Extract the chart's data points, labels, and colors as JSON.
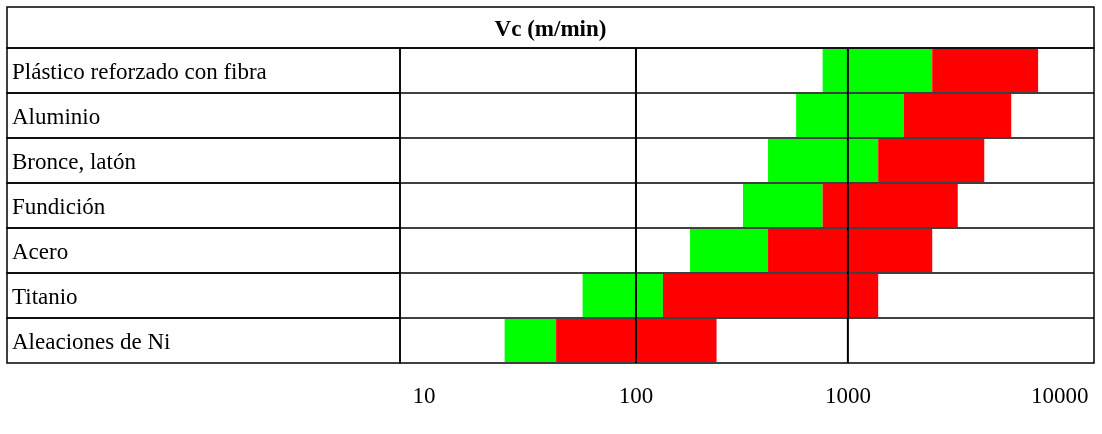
{
  "chart_data": {
    "type": "bar",
    "title": "Vc (m/min)",
    "orientation": "horizontal",
    "log": "x",
    "categories": [
      "Plástico reforzado con fibra",
      "Aluminio",
      "Bronce, latón",
      "Fundición",
      "Acero",
      "Titanio",
      "Aleaciones de Ni"
    ],
    "series": [
      {
        "color": "#00ff00",
        "base": [
          760,
          570,
          420,
          320,
          180,
          56,
          24
        ],
        "values": [
          1740,
          1270,
          970,
          440,
          240,
          78,
          18
        ]
      },
      {
        "color": "#ff0000",
        "base": [
          2500,
          1840,
          1390,
          760,
          420,
          134,
          42
        ],
        "values": [
          5400,
          4060,
          3010,
          2540,
          2080,
          1256,
          198
        ]
      }
    ],
    "xlim": [
      7.7,
      14500
    ],
    "xticks": [
      10,
      100,
      1000,
      10000
    ],
    "ref_lines": [
      {
        "axis": "x",
        "value": 100,
        "color": "#000000"
      },
      {
        "axis": "x",
        "value": 1000,
        "color": "#000000"
      }
    ]
  }
}
